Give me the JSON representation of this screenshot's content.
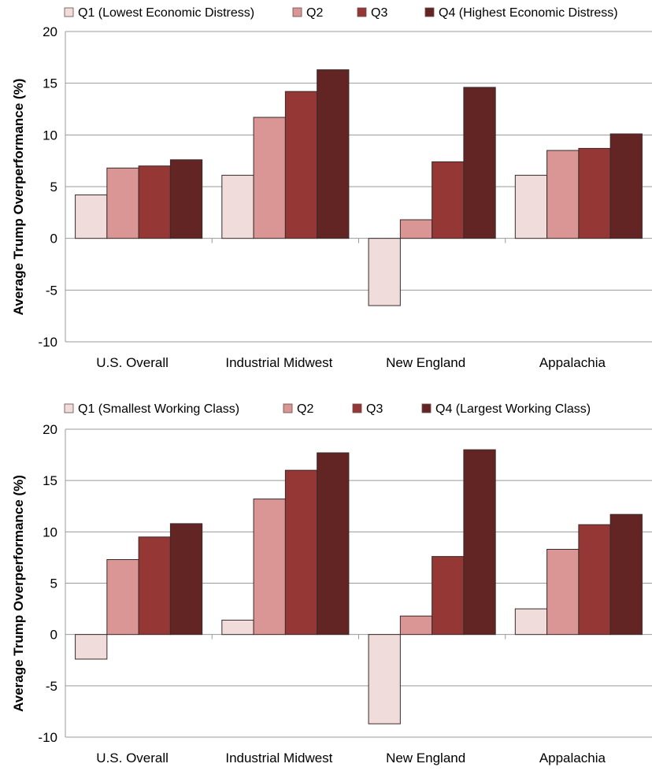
{
  "chart_data": [
    {
      "type": "bar",
      "ylabel": "Average Trump Overperformance (%)",
      "ylim": [
        -10,
        20
      ],
      "yticks": [
        -10,
        -5,
        0,
        5,
        10,
        15,
        20
      ],
      "grid": true,
      "legend_position": "top",
      "categories": [
        "U.S. Overall",
        "Industrial Midwest",
        "New England",
        "Appalachia"
      ],
      "series": [
        {
          "name": "Q1 (Lowest Economic Distress)",
          "color": "#f1dcdc",
          "values": [
            4.2,
            6.1,
            -6.5,
            6.1
          ]
        },
        {
          "name": "Q2",
          "color": "#d99694",
          "values": [
            6.8,
            11.7,
            1.8,
            8.5
          ]
        },
        {
          "name": "Q3",
          "color": "#953735",
          "values": [
            7.0,
            14.2,
            7.4,
            8.7
          ]
        },
        {
          "name": "Q4 (Highest Economic Distress)",
          "color": "#632523",
          "values": [
            7.6,
            16.3,
            14.6,
            10.1
          ]
        }
      ]
    },
    {
      "type": "bar",
      "ylabel": "Average Trump Overperformance (%)",
      "ylim": [
        -10,
        20
      ],
      "yticks": [
        -10,
        -5,
        0,
        5,
        10,
        15,
        20
      ],
      "grid": true,
      "legend_position": "top",
      "categories": [
        "U.S. Overall",
        "Industrial Midwest",
        "New England",
        "Appalachia"
      ],
      "series": [
        {
          "name": "Q1 (Smallest Working Class)",
          "color": "#f1dcdc",
          "values": [
            -2.4,
            1.4,
            -8.7,
            2.5
          ]
        },
        {
          "name": "Q2",
          "color": "#d99694",
          "values": [
            7.3,
            13.2,
            1.8,
            8.3
          ]
        },
        {
          "name": "Q3",
          "color": "#953735",
          "values": [
            9.5,
            16.0,
            7.6,
            10.7
          ]
        },
        {
          "name": "Q4 (Largest Working Class)",
          "color": "#632523",
          "values": [
            10.8,
            17.7,
            18.0,
            11.7
          ]
        }
      ]
    }
  ]
}
